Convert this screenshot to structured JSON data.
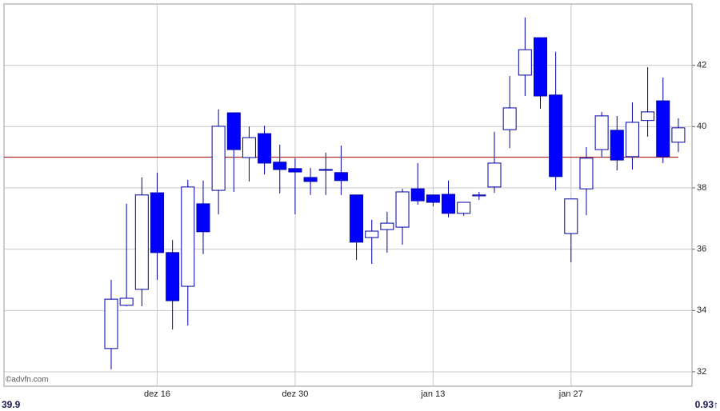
{
  "chart_data": {
    "type": "candlestick",
    "categories": [
      null,
      null,
      null,
      "dez 16",
      null,
      null,
      null,
      null,
      null,
      null,
      null,
      null,
      "dez 30",
      null,
      null,
      null,
      null,
      null,
      null,
      null,
      null,
      "jan 13",
      null,
      null,
      null,
      null,
      null,
      null,
      null,
      null,
      "jan 27",
      null,
      null,
      null,
      null,
      null,
      null,
      null
    ],
    "open": [
      32.76,
      34.17,
      34.69,
      37.84,
      35.89,
      34.79,
      37.48,
      37.92,
      40.45,
      38.99,
      39.77,
      38.84,
      38.63,
      38.34,
      38.58,
      38.5,
      37.77,
      36.38,
      36.64,
      36.72,
      37.97,
      37.77,
      37.79,
      37.17,
      37.74,
      38.03,
      39.9,
      41.68,
      42.9,
      41.03,
      36.51,
      37.97,
      39.25,
      39.88,
      39.02,
      40.2,
      40.84,
      39.49
    ],
    "high": [
      35.0,
      37.48,
      38.34,
      38.5,
      36.3,
      38.26,
      38.24,
      40.56,
      40.45,
      40.0,
      40.03,
      39.41,
      38.97,
      38.65,
      39.15,
      39.38,
      37.77,
      36.96,
      37.22,
      37.97,
      38.81,
      37.77,
      38.24,
      37.53,
      37.87,
      39.83,
      41.65,
      43.56,
      42.9,
      42.44,
      37.64,
      39.33,
      40.48,
      40.35,
      40.79,
      41.94,
      41.6,
      40.27
    ],
    "low": [
      32.08,
      34.14,
      34.14,
      35.0,
      33.38,
      33.51,
      35.84,
      37.14,
      37.87,
      38.21,
      38.44,
      37.82,
      37.14,
      37.77,
      37.77,
      37.77,
      35.65,
      35.52,
      35.89,
      36.15,
      37.45,
      37.4,
      37.04,
      37.09,
      37.61,
      37.84,
      39.3,
      41.0,
      40.58,
      37.92,
      35.57,
      37.11,
      38.99,
      38.57,
      38.6,
      39.67,
      38.81,
      39.17
    ],
    "close": [
      34.37,
      34.4,
      37.77,
      35.89,
      34.32,
      38.03,
      36.57,
      40.01,
      39.25,
      39.64,
      38.81,
      38.6,
      38.52,
      38.21,
      38.6,
      38.24,
      36.23,
      36.59,
      36.85,
      37.87,
      37.58,
      37.53,
      37.17,
      37.53,
      37.77,
      38.81,
      40.61,
      42.51,
      41.0,
      38.37,
      37.64,
      38.97,
      40.35,
      38.91,
      40.14,
      40.48,
      39.02,
      39.96
    ],
    "up_color": "#ffffff",
    "down_color": "#0000ff",
    "edge_color": "#0000aa",
    "reference_line": 39.0,
    "reference_color": "#a00000",
    "ylim": [
      31.53,
      44.0
    ],
    "yticks": [
      32,
      34,
      36,
      38,
      40,
      42
    ],
    "grid": true,
    "watermark": "©advfn.com",
    "footer_left": "39.9",
    "footer_right": "0.93↑"
  }
}
